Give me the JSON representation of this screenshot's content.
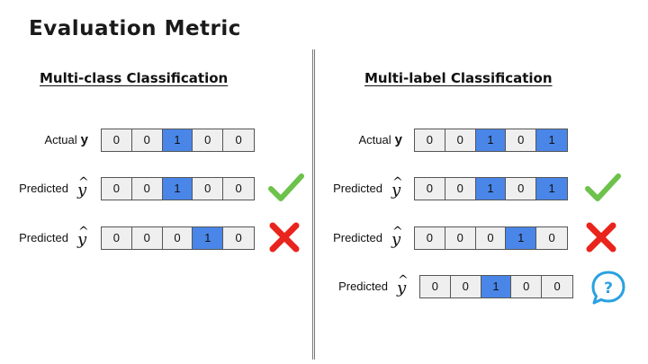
{
  "title": "Evaluation Metric",
  "panels": [
    {
      "heading": "Multi-class Classification",
      "rows": [
        {
          "label": "Actual",
          "symbol": "y",
          "hat": false,
          "values": [
            0,
            0,
            1,
            0,
            0
          ],
          "mark": ""
        },
        {
          "label": "Predicted",
          "symbol": "y",
          "hat": true,
          "values": [
            0,
            0,
            1,
            0,
            0
          ],
          "mark": "check-icon"
        },
        {
          "label": "Predicted",
          "symbol": "y",
          "hat": true,
          "values": [
            0,
            0,
            0,
            1,
            0
          ],
          "mark": "cross-icon"
        }
      ]
    },
    {
      "heading": "Multi-label Classification",
      "rows": [
        {
          "label": "Actual",
          "symbol": "y",
          "hat": false,
          "values": [
            0,
            0,
            1,
            0,
            1
          ],
          "mark": ""
        },
        {
          "label": "Predicted",
          "symbol": "y",
          "hat": true,
          "values": [
            0,
            0,
            1,
            0,
            1
          ],
          "mark": "check-icon"
        },
        {
          "label": "Predicted",
          "symbol": "y",
          "hat": true,
          "values": [
            0,
            0,
            0,
            1,
            0
          ],
          "mark": "cross-icon"
        },
        {
          "label": "Predicted",
          "symbol": "y",
          "hat": true,
          "values": [
            0,
            0,
            1,
            0,
            0
          ],
          "mark": "question-bubble-icon"
        }
      ]
    }
  ],
  "colors": {
    "active_cell": "#4a86e8",
    "inactive_cell": "#efefef",
    "check": "#6cc24a",
    "cross": "#e8241c",
    "question": "#2aa1e0"
  }
}
